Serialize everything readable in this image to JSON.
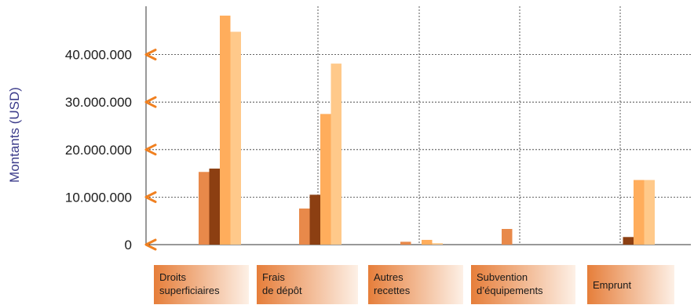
{
  "chart_data": {
    "type": "bar",
    "ylabel": "Montants (USD)",
    "xlabel": "",
    "ylim": [
      0,
      50000000
    ],
    "grid": true,
    "y_ticks": [
      {
        "value": 0,
        "label": "0"
      },
      {
        "value": 10000000,
        "label": "10.000.000"
      },
      {
        "value": 20000000,
        "label": "20.000.000"
      },
      {
        "value": 30000000,
        "label": "30.000.000"
      },
      {
        "value": 40000000,
        "label": "40.000.000"
      }
    ],
    "categories": [
      [
        "Droits",
        "superficiaires"
      ],
      [
        "Frais",
        "de dépôt"
      ],
      [
        "Autres",
        "recettes"
      ],
      [
        "Subvention",
        "d’équipements"
      ],
      [
        "Emprunt"
      ]
    ],
    "series": [
      {
        "color": "#e8894a",
        "values": [
          15300000,
          7600000,
          600000,
          3300000,
          0
        ]
      },
      {
        "color": "#8c3f12",
        "values": [
          16000000,
          10500000,
          0,
          0,
          1600000
        ]
      },
      {
        "color": "#ffad5c",
        "values": [
          48200000,
          27500000,
          1000000,
          0,
          13600000
        ]
      },
      {
        "color": "#ffc98a",
        "values": [
          44800000,
          38100000,
          300000,
          0,
          13600000
        ]
      }
    ],
    "colors": {
      "arrow": "#f08020",
      "grid": "#333333",
      "label_fill_start": "#e67e3a",
      "label_fill_end": "#fdf0e6"
    }
  }
}
